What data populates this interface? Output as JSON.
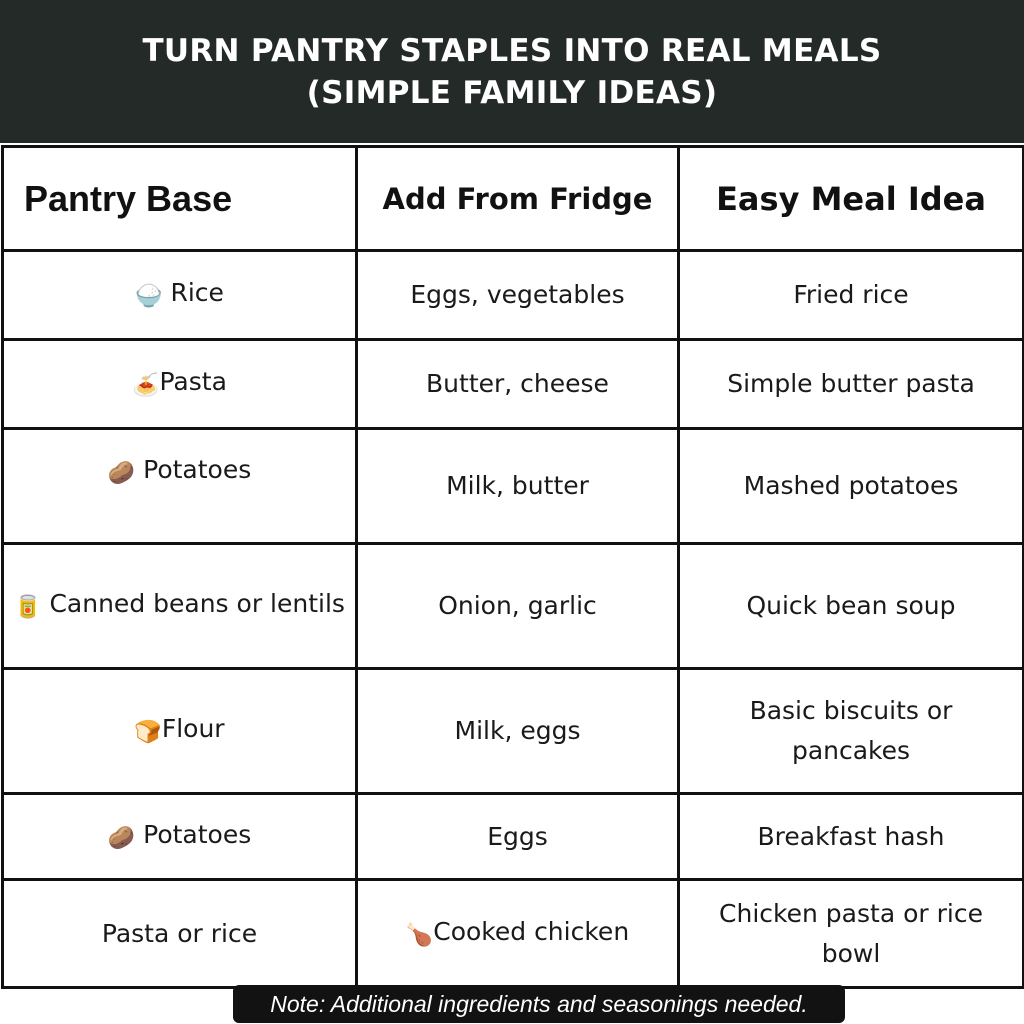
{
  "title": {
    "line1": "TURN PANTRY STAPLES INTO REAL MEALS",
    "line2": "(SIMPLE FAMILY IDEAS)"
  },
  "table": {
    "headers": [
      "Pantry Base",
      "Add From Fridge",
      "Easy Meal Idea"
    ],
    "rows": [
      {
        "icon": "rice-bowl-icon",
        "glyph": "🍚",
        "base": "Rice",
        "fridge": "Eggs, vegetables",
        "meal": "Fried rice"
      },
      {
        "icon": "spaghetti-icon",
        "glyph": "🍝",
        "base": "Pasta",
        "fridge": "Butter, cheese",
        "meal": "Simple butter pasta"
      },
      {
        "icon": "potato-icon",
        "glyph": "🥔",
        "base": "Potatoes",
        "fridge": "Milk, butter",
        "meal": "Mashed potatoes"
      },
      {
        "icon": "canned-food-icon",
        "glyph": "🥫",
        "base": "Canned beans or lentils",
        "fridge": "Onion, garlic",
        "meal": "Quick bean soup"
      },
      {
        "icon": "bread-icon",
        "glyph": "🍞",
        "base": "Flour",
        "fridge": "Milk, eggs",
        "meal": "Basic biscuits or pancakes"
      },
      {
        "icon": "potato-icon",
        "glyph": "🥔",
        "base": "Potatoes",
        "fridge": "Eggs",
        "meal": "Breakfast hash"
      },
      {
        "icon": "",
        "glyph": "",
        "base": "Pasta or rice",
        "fridge_icon": "poultry-leg-icon",
        "fridge_glyph": "🍗",
        "fridge": "Cooked chicken",
        "meal": "Chicken pasta or rice bowl"
      }
    ]
  },
  "note": "Note: Additional ingredients and seasonings needed."
}
